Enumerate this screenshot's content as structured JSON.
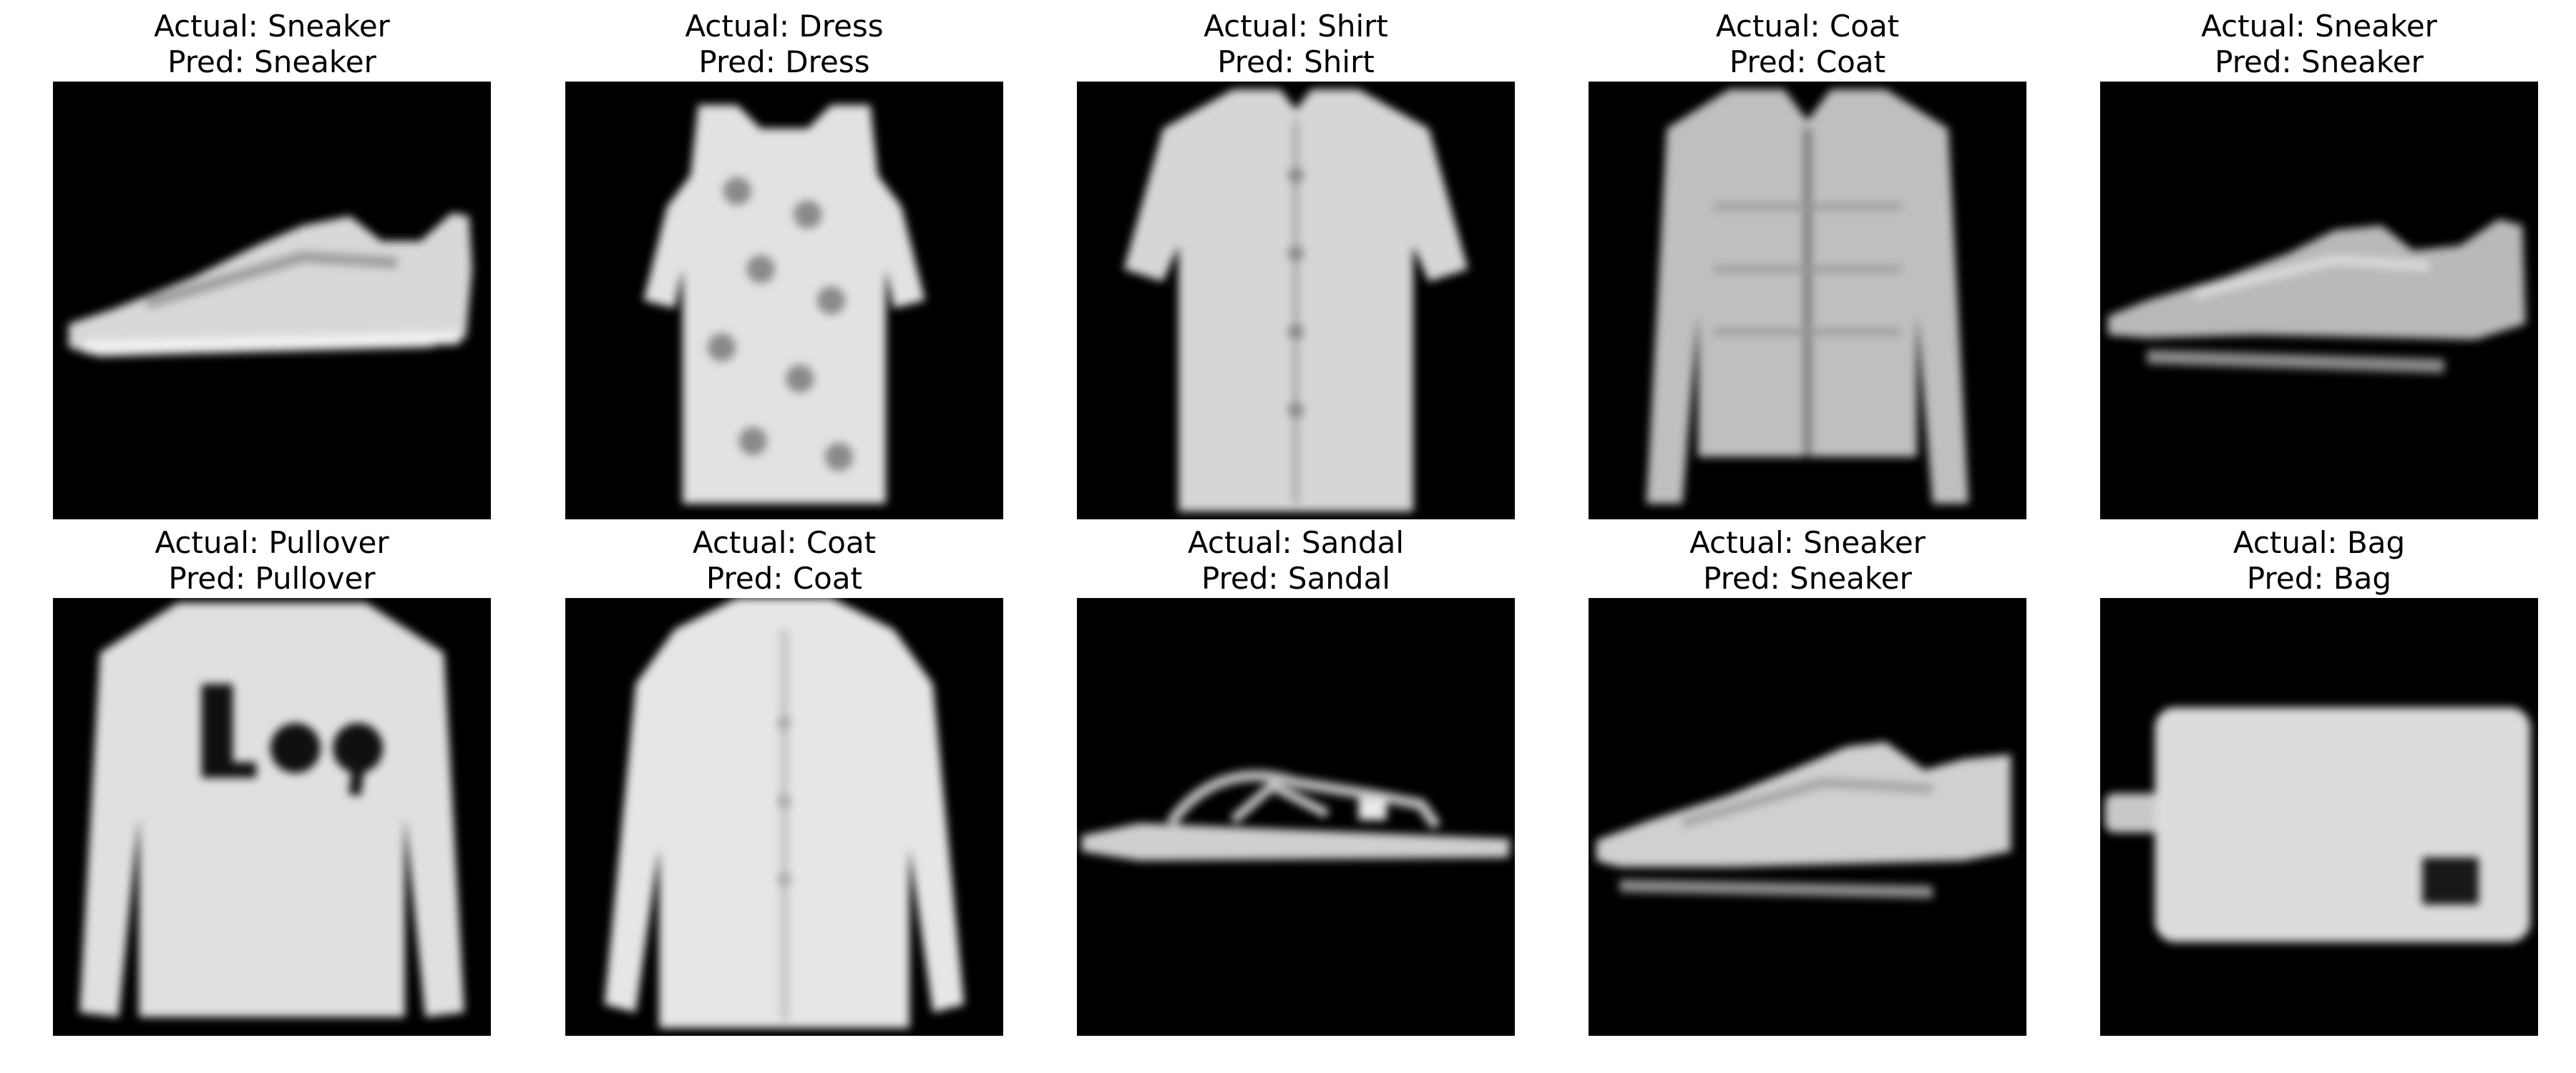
{
  "samples": [
    {
      "actual": "Actual: Sneaker",
      "pred": "Pred: Sneaker",
      "item": "sneaker"
    },
    {
      "actual": "Actual: Dress",
      "pred": "Pred: Dress",
      "item": "dress"
    },
    {
      "actual": "Actual: Shirt",
      "pred": "Pred: Shirt",
      "item": "shirt"
    },
    {
      "actual": "Actual: Coat",
      "pred": "Pred: Coat",
      "item": "coat"
    },
    {
      "actual": "Actual: Sneaker",
      "pred": "Pred: Sneaker",
      "item": "sneaker"
    },
    {
      "actual": "Actual: Pullover",
      "pred": "Pred: Pullover",
      "item": "pullover"
    },
    {
      "actual": "Actual: Coat",
      "pred": "Pred: Coat",
      "item": "coat"
    },
    {
      "actual": "Actual: Sandal",
      "pred": "Pred: Sandal",
      "item": "sandal"
    },
    {
      "actual": "Actual: Sneaker",
      "pred": "Pred: Sneaker",
      "item": "sneaker"
    },
    {
      "actual": "Actual: Bag",
      "pred": "Pred: Bag",
      "item": "bag"
    }
  ],
  "colors": {
    "background": "#000000",
    "garment": "#d9d9d9",
    "shadow": "#8a8a8a"
  }
}
